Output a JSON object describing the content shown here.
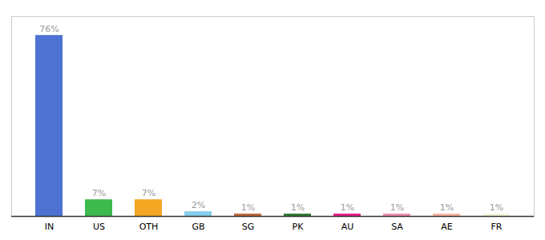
{
  "chart_data": {
    "type": "bar",
    "categories": [
      "IN",
      "US",
      "OTH",
      "GB",
      "SG",
      "PK",
      "AU",
      "SA",
      "AE",
      "FR"
    ],
    "values": [
      76,
      7,
      7,
      2,
      1,
      1,
      1,
      1,
      1,
      1
    ],
    "value_labels": [
      "76%",
      "7%",
      "7%",
      "2%",
      "1%",
      "1%",
      "1%",
      "1%",
      "1%",
      "1%"
    ],
    "colors": [
      "#4d72d1",
      "#3dba4e",
      "#f5a623",
      "#87ceeb",
      "#c0673a",
      "#2e7d32",
      "#e91e8c",
      "#f48fb1",
      "#ffb8a0",
      "#f5f5dc"
    ],
    "ylim": [
      0,
      84
    ],
    "grid": false,
    "data_labels": true,
    "tick_labels": "x"
  }
}
